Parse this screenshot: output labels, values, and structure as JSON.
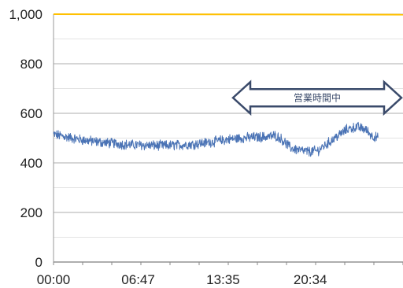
{
  "chart_data": {
    "type": "line",
    "xlabel": "",
    "ylabel": "",
    "xlim_hours": [
      0,
      28
    ],
    "ylim": [
      0,
      1000
    ],
    "y_ticks": [
      0,
      200,
      400,
      600,
      800,
      1000
    ],
    "y_tick_labels": [
      "0",
      "200",
      "400",
      "600",
      "800",
      "1,000"
    ],
    "x_ticks": [
      {
        "label": "00:00",
        "hour": 0
      },
      {
        "label": "06:47",
        "hour": 6.783
      },
      {
        "label": "13:35",
        "hour": 13.583
      },
      {
        "label": "20:34",
        "hour": 20.567
      }
    ],
    "grid": true,
    "grid_color": "#bdbdbd",
    "series": [
      {
        "color": "#ffc000",
        "points": [
          [
            0,
            1000
          ],
          [
            28,
            998
          ]
        ]
      },
      {
        "color": "#4a73b5",
        "noise_amplitude": 18,
        "points": [
          [
            0,
            515
          ],
          [
            0.5,
            510
          ],
          [
            1,
            505
          ],
          [
            2,
            495
          ],
          [
            3,
            488
          ],
          [
            4,
            482
          ],
          [
            5,
            478
          ],
          [
            6,
            473
          ],
          [
            7,
            472
          ],
          [
            8,
            470
          ],
          [
            9,
            470
          ],
          [
            10,
            472
          ],
          [
            11,
            475
          ],
          [
            12,
            480
          ],
          [
            13,
            487
          ],
          [
            14,
            495
          ],
          [
            15,
            500
          ],
          [
            16,
            503
          ],
          [
            17,
            505
          ],
          [
            17.8,
            510
          ],
          [
            18.3,
            495
          ],
          [
            19,
            460
          ],
          [
            19.8,
            450
          ],
          [
            20.5,
            445
          ],
          [
            21.2,
            450
          ],
          [
            22,
            480
          ],
          [
            22.8,
            510
          ],
          [
            23.5,
            535
          ],
          [
            24.3,
            545
          ],
          [
            25,
            535
          ],
          [
            25.5,
            510
          ],
          [
            26,
            500
          ]
        ]
      }
    ],
    "annotation": {
      "type": "double-arrow",
      "text": "営業時間中",
      "from_hour": 12.5,
      "to_hour": 28,
      "y": 650,
      "stroke": "#3a4a6a"
    }
  }
}
